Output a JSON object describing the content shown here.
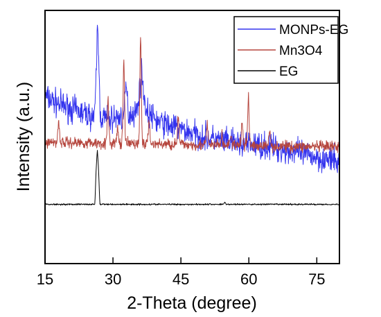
{
  "chart_data": {
    "type": "line",
    "xlabel": "2-Theta (degree)",
    "ylabel": "Intensity (a.u.)",
    "xlim": [
      15,
      80
    ],
    "xticks": [
      "15",
      "30",
      "45",
      "60",
      "75"
    ],
    "ylim": [
      0,
      100
    ],
    "y_tick_labels": false,
    "grid": false,
    "legend_position": "top-right",
    "series": [
      {
        "name": "MONPs-EG",
        "color": "#3333ee",
        "noise": 2.6,
        "points": [
          [
            15,
            66
          ],
          [
            18,
            63
          ],
          [
            21,
            61
          ],
          [
            24,
            59
          ],
          [
            26,
            58
          ],
          [
            26.3,
            76
          ],
          [
            26.6,
            95
          ],
          [
            26.9,
            77
          ],
          [
            27.2,
            58
          ],
          [
            29,
            57
          ],
          [
            32.4,
            58
          ],
          [
            32.9,
            71
          ],
          [
            33.4,
            59
          ],
          [
            35.3,
            60
          ],
          [
            35.8,
            68
          ],
          [
            36.3,
            75
          ],
          [
            36.8,
            68
          ],
          [
            37.3,
            60
          ],
          [
            40,
            56
          ],
          [
            45,
            53
          ],
          [
            50,
            50
          ],
          [
            55,
            48
          ],
          [
            60,
            47
          ],
          [
            65,
            46
          ],
          [
            70,
            44
          ],
          [
            75,
            42
          ],
          [
            80,
            40
          ]
        ]
      },
      {
        "name": "Mn3O4",
        "color": "#b5453d",
        "noise": 1.1,
        "points": [
          [
            15,
            48
          ],
          [
            80,
            46
          ]
        ],
        "peaks": [
          [
            18,
            9
          ],
          [
            28.9,
            17
          ],
          [
            31,
            6
          ],
          [
            32.4,
            32
          ],
          [
            36.1,
            42
          ],
          [
            38,
            10
          ],
          [
            44.4,
            11
          ],
          [
            50.8,
            8
          ],
          [
            54,
            4
          ],
          [
            56,
            5
          ],
          [
            58.5,
            10
          ],
          [
            59.9,
            20
          ],
          [
            64.6,
            6
          ]
        ]
      },
      {
        "name": "EG",
        "color": "#000000",
        "noise": 0.15,
        "points": [
          [
            15,
            23.4
          ],
          [
            26,
            23.4
          ],
          [
            26.3,
            38
          ],
          [
            26.55,
            45
          ],
          [
            26.8,
            38
          ],
          [
            27.1,
            23.4
          ],
          [
            54.4,
            23.4
          ],
          [
            54.7,
            24.4
          ],
          [
            55,
            23.4
          ],
          [
            80,
            23.4
          ]
        ]
      }
    ]
  }
}
